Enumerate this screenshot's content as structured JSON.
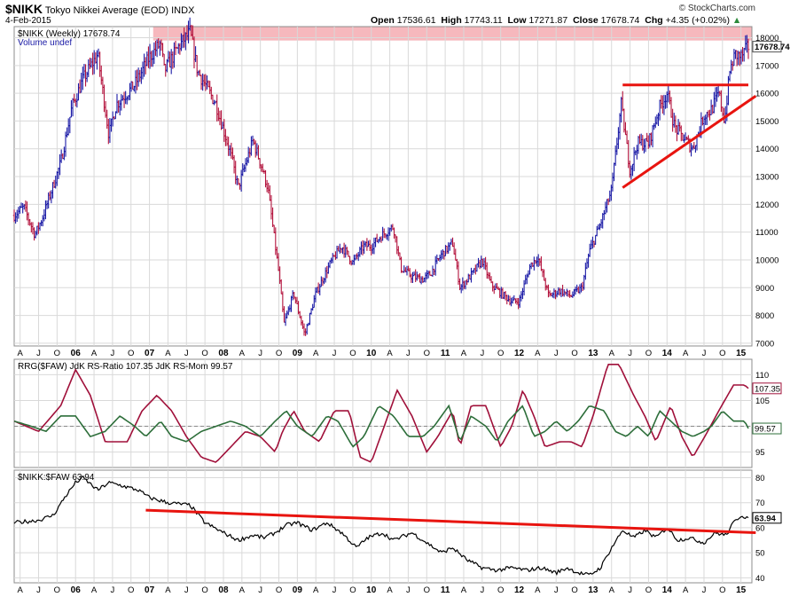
{
  "header": {
    "symbol": "$NIKK",
    "name": "Tokyo Nikkei Average (EOD)",
    "exchange": "INDX",
    "date": "4-Feb-2015",
    "open_label": "Open",
    "open": "17536.61",
    "high_label": "High",
    "high": "17743.11",
    "low_label": "Low",
    "low": "17271.87",
    "close_label": "Close",
    "close": "17678.74",
    "chg_label": "Chg",
    "chg": "+4.35 (+0.02%)",
    "brand": "© StockCharts.com"
  },
  "colors": {
    "up_bar": "#1a1aa6",
    "down_bar": "#b3123c",
    "trendline": "#e8140f",
    "highlight": "#f6b8bd",
    "rs_ratio": "#a0103a",
    "rs_mom": "#2d6e3a",
    "ratio_line": "#000000",
    "grid": "#d9d9d9"
  },
  "chart_data": [
    {
      "type": "ohlc",
      "panel": "price",
      "title": "$NIKK (Weekly) 17678.74",
      "legend_volume": "Volume undef",
      "last_value": "17678.74",
      "x_range": [
        2005.17,
        2015.1
      ],
      "ylim": [
        6900,
        18400
      ],
      "yticks": [
        7000,
        8000,
        9000,
        10000,
        11000,
        12000,
        13000,
        14000,
        15000,
        16000,
        17000,
        18000
      ],
      "x_months": [
        "A",
        "J",
        "O",
        "06",
        "A",
        "J",
        "O",
        "07",
        "A",
        "J",
        "O",
        "08",
        "A",
        "J",
        "O",
        "09",
        "A",
        "J",
        "O",
        "10",
        "A",
        "J",
        "O",
        "11",
        "A",
        "J",
        "O",
        "12",
        "A",
        "J",
        "O",
        "13",
        "A",
        "J",
        "O",
        "14",
        "A",
        "J",
        "O",
        "15"
      ],
      "anchors": [
        [
          2005.17,
          11600
        ],
        [
          2005.3,
          11900
        ],
        [
          2005.45,
          10900
        ],
        [
          2005.55,
          11500
        ],
        [
          2005.8,
          13500
        ],
        [
          2005.95,
          15500
        ],
        [
          2006.1,
          16500
        ],
        [
          2006.3,
          17400
        ],
        [
          2006.45,
          14500
        ],
        [
          2006.55,
          15600
        ],
        [
          2006.8,
          16300
        ],
        [
          2007.0,
          17300
        ],
        [
          2007.15,
          17800
        ],
        [
          2007.2,
          16800
        ],
        [
          2007.4,
          17700
        ],
        [
          2007.55,
          18200
        ],
        [
          2007.65,
          16800
        ],
        [
          2007.9,
          15600
        ],
        [
          2008.1,
          13800
        ],
        [
          2008.2,
          12600
        ],
        [
          2008.4,
          14300
        ],
        [
          2008.5,
          13500
        ],
        [
          2008.6,
          12600
        ],
        [
          2008.75,
          9500
        ],
        [
          2008.82,
          7700
        ],
        [
          2008.95,
          8800
        ],
        [
          2009.1,
          7300
        ],
        [
          2009.25,
          8800
        ],
        [
          2009.45,
          9900
        ],
        [
          2009.6,
          10500
        ],
        [
          2009.75,
          9900
        ],
        [
          2009.9,
          10500
        ],
        [
          2010.0,
          10500
        ],
        [
          2010.15,
          10900
        ],
        [
          2010.3,
          11200
        ],
        [
          2010.4,
          9700
        ],
        [
          2010.55,
          9400
        ],
        [
          2010.7,
          9300
        ],
        [
          2010.8,
          9500
        ],
        [
          2010.95,
          10200
        ],
        [
          2011.1,
          10600
        ],
        [
          2011.2,
          9000
        ],
        [
          2011.4,
          9600
        ],
        [
          2011.5,
          10000
        ],
        [
          2011.62,
          9100
        ],
        [
          2011.8,
          8700
        ],
        [
          2011.9,
          8500
        ],
        [
          2012.0,
          8500
        ],
        [
          2012.15,
          9800
        ],
        [
          2012.25,
          10100
        ],
        [
          2012.4,
          8700
        ],
        [
          2012.55,
          8900
        ],
        [
          2012.7,
          8700
        ],
        [
          2012.85,
          9000
        ],
        [
          2012.95,
          10300
        ],
        [
          2013.1,
          11300
        ],
        [
          2013.25,
          12500
        ],
        [
          2013.38,
          15600
        ],
        [
          2013.5,
          13200
        ],
        [
          2013.6,
          14200
        ],
        [
          2013.75,
          14200
        ],
        [
          2013.9,
          15500
        ],
        [
          2014.0,
          16000
        ],
        [
          2014.1,
          14800
        ],
        [
          2014.25,
          14300
        ],
        [
          2014.35,
          14000
        ],
        [
          2014.5,
          15200
        ],
        [
          2014.6,
          15400
        ],
        [
          2014.7,
          16000
        ],
        [
          2014.78,
          15000
        ],
        [
          2014.85,
          16800
        ],
        [
          2014.92,
          17400
        ],
        [
          2015.0,
          17300
        ],
        [
          2015.1,
          17680
        ]
      ],
      "annotations": {
        "resistance": [
          [
            2013.4,
            16300
          ],
          [
            2015.1,
            16300
          ]
        ],
        "support": [
          [
            2013.4,
            12600
          ],
          [
            2015.2,
            15900
          ]
        ],
        "highlight_band": [
          17900,
          18400
        ]
      }
    },
    {
      "type": "line",
      "panel": "rrg",
      "title": "RRG($FAW) JdK RS-Ratio 107.35 JdK RS-Mom 99.57",
      "ylim": [
        92,
        113
      ],
      "yticks": [
        95,
        100,
        105,
        110
      ],
      "reference_value": 100,
      "series": [
        {
          "name": "JdK RS-Ratio",
          "last": "107.35",
          "points": [
            [
              2005.17,
              101
            ],
            [
              2005.5,
              99
            ],
            [
              2005.8,
              104
            ],
            [
              2006.0,
              111
            ],
            [
              2006.2,
              106
            ],
            [
              2006.4,
              97
            ],
            [
              2006.7,
              97
            ],
            [
              2006.9,
              103
            ],
            [
              2007.1,
              106
            ],
            [
              2007.3,
              103
            ],
            [
              2007.5,
              98
            ],
            [
              2007.7,
              94
            ],
            [
              2007.9,
              93
            ],
            [
              2008.1,
              96
            ],
            [
              2008.3,
              99
            ],
            [
              2008.5,
              98
            ],
            [
              2008.7,
              95
            ],
            [
              2008.8,
              99
            ],
            [
              2008.95,
              103
            ],
            [
              2009.1,
              99
            ],
            [
              2009.3,
              97
            ],
            [
              2009.5,
              103
            ],
            [
              2009.7,
              103
            ],
            [
              2009.85,
              94
            ],
            [
              2010.0,
              93
            ],
            [
              2010.2,
              101
            ],
            [
              2010.35,
              107
            ],
            [
              2010.55,
              102
            ],
            [
              2010.75,
              95
            ],
            [
              2010.9,
              98
            ],
            [
              2011.1,
              103
            ],
            [
              2011.2,
              96
            ],
            [
              2011.35,
              104
            ],
            [
              2011.55,
              104
            ],
            [
              2011.75,
              96
            ],
            [
              2011.9,
              100
            ],
            [
              2012.05,
              107
            ],
            [
              2012.2,
              102
            ],
            [
              2012.35,
              96
            ],
            [
              2012.55,
              97
            ],
            [
              2012.7,
              97
            ],
            [
              2012.85,
              96
            ],
            [
              2013.0,
              102
            ],
            [
              2013.2,
              112
            ],
            [
              2013.35,
              112
            ],
            [
              2013.55,
              106
            ],
            [
              2013.7,
              102
            ],
            [
              2013.85,
              97
            ],
            [
              2014.05,
              104
            ],
            [
              2014.2,
              98
            ],
            [
              2014.35,
              94
            ],
            [
              2014.55,
              99
            ],
            [
              2014.7,
              103
            ],
            [
              2014.9,
              108
            ],
            [
              2015.05,
              108
            ],
            [
              2015.1,
              107.35
            ]
          ]
        },
        {
          "name": "JdK RS-Mom",
          "last": "99.57",
          "points": [
            [
              2005.17,
              101
            ],
            [
              2005.4,
              100
            ],
            [
              2005.6,
              99
            ],
            [
              2005.8,
              102
            ],
            [
              2006.0,
              102
            ],
            [
              2006.2,
              98
            ],
            [
              2006.4,
              99
            ],
            [
              2006.6,
              102
            ],
            [
              2006.8,
              100
            ],
            [
              2006.95,
              98
            ],
            [
              2007.15,
              101
            ],
            [
              2007.3,
              98
            ],
            [
              2007.5,
              97
            ],
            [
              2007.7,
              99
            ],
            [
              2007.9,
              100
            ],
            [
              2008.1,
              101
            ],
            [
              2008.3,
              100
            ],
            [
              2008.5,
              98
            ],
            [
              2008.7,
              101
            ],
            [
              2008.85,
              103
            ],
            [
              2009.0,
              100
            ],
            [
              2009.2,
              98
            ],
            [
              2009.4,
              102
            ],
            [
              2009.55,
              101
            ],
            [
              2009.75,
              96
            ],
            [
              2009.9,
              98
            ],
            [
              2010.1,
              104
            ],
            [
              2010.3,
              102
            ],
            [
              2010.5,
              98
            ],
            [
              2010.7,
              98
            ],
            [
              2010.85,
              100
            ],
            [
              2011.05,
              104
            ],
            [
              2011.2,
              97
            ],
            [
              2011.35,
              102
            ],
            [
              2011.55,
              100
            ],
            [
              2011.7,
              97
            ],
            [
              2011.85,
              101
            ],
            [
              2012.05,
              104
            ],
            [
              2012.2,
              98
            ],
            [
              2012.35,
              99
            ],
            [
              2012.5,
              101
            ],
            [
              2012.65,
              99
            ],
            [
              2012.8,
              101
            ],
            [
              2012.95,
              104
            ],
            [
              2013.15,
              103
            ],
            [
              2013.3,
              99
            ],
            [
              2013.45,
              98
            ],
            [
              2013.6,
              100
            ],
            [
              2013.75,
              98
            ],
            [
              2013.9,
              103
            ],
            [
              2014.05,
              101
            ],
            [
              2014.2,
              99
            ],
            [
              2014.35,
              98
            ],
            [
              2014.5,
              99
            ],
            [
              2014.6,
              100
            ],
            [
              2014.75,
              103
            ],
            [
              2014.9,
              101
            ],
            [
              2015.05,
              101
            ],
            [
              2015.1,
              99.57
            ]
          ]
        }
      ]
    },
    {
      "type": "line",
      "panel": "ratio",
      "title": "$NIKK:$FAW 63.94",
      "last_value": "63.94",
      "ylim": [
        38,
        83
      ],
      "yticks": [
        40,
        50,
        60,
        70,
        80
      ],
      "x_months": [
        "A",
        "J",
        "O",
        "06",
        "A",
        "J",
        "O",
        "07",
        "A",
        "J",
        "O",
        "08",
        "A",
        "J",
        "O",
        "09",
        "A",
        "J",
        "O",
        "10",
        "A",
        "J",
        "O",
        "11",
        "A",
        "J",
        "O",
        "12",
        "A",
        "J",
        "O",
        "13",
        "A",
        "J",
        "O",
        "14",
        "A",
        "J",
        "O",
        "15"
      ],
      "points": [
        [
          2005.17,
          62
        ],
        [
          2005.5,
          63
        ],
        [
          2005.7,
          65
        ],
        [
          2005.85,
          72
        ],
        [
          2006.0,
          78
        ],
        [
          2006.1,
          80
        ],
        [
          2006.3,
          75
        ],
        [
          2006.45,
          78
        ],
        [
          2006.6,
          77
        ],
        [
          2006.85,
          75
        ],
        [
          2007.0,
          72
        ],
        [
          2007.25,
          70
        ],
        [
          2007.55,
          69
        ],
        [
          2007.75,
          62
        ],
        [
          2008.0,
          58
        ],
        [
          2008.2,
          55
        ],
        [
          2008.4,
          57
        ],
        [
          2008.55,
          56
        ],
        [
          2008.7,
          58
        ],
        [
          2008.85,
          61
        ],
        [
          2009.0,
          62
        ],
        [
          2009.2,
          59
        ],
        [
          2009.4,
          62
        ],
        [
          2009.6,
          58
        ],
        [
          2009.8,
          52
        ],
        [
          2009.95,
          56
        ],
        [
          2010.15,
          58
        ],
        [
          2010.3,
          55
        ],
        [
          2010.55,
          58
        ],
        [
          2010.75,
          54
        ],
        [
          2010.95,
          50
        ],
        [
          2011.1,
          52
        ],
        [
          2011.3,
          47
        ],
        [
          2011.5,
          44
        ],
        [
          2011.7,
          43
        ],
        [
          2011.9,
          44
        ],
        [
          2012.1,
          43
        ],
        [
          2012.3,
          44
        ],
        [
          2012.5,
          42
        ],
        [
          2012.65,
          44
        ],
        [
          2012.8,
          42
        ],
        [
          2012.95,
          41
        ],
        [
          2013.1,
          44
        ],
        [
          2013.25,
          52
        ],
        [
          2013.4,
          59
        ],
        [
          2013.55,
          56
        ],
        [
          2013.7,
          59
        ],
        [
          2013.85,
          56
        ],
        [
          2014.0,
          60
        ],
        [
          2014.15,
          55
        ],
        [
          2014.3,
          56
        ],
        [
          2014.5,
          54
        ],
        [
          2014.65,
          58
        ],
        [
          2014.8,
          57
        ],
        [
          2014.9,
          62
        ],
        [
          2015.0,
          65
        ],
        [
          2015.1,
          63.94
        ]
      ],
      "annotations": {
        "trendline": [
          [
            2006.95,
            67
          ],
          [
            2015.2,
            58
          ]
        ]
      }
    }
  ]
}
